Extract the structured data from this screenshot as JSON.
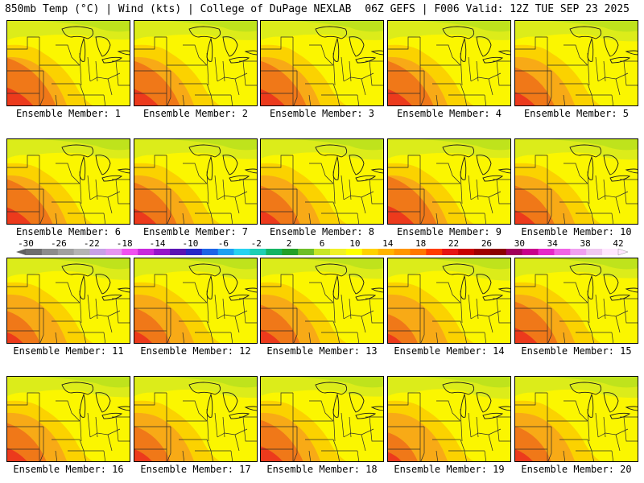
{
  "header": {
    "left": "850mb Temp (°C) | Wind (kts) | College of DuPage NEXLAB",
    "right": "06Z GEFS | F006 Valid: 12Z TUE SEP 23 2025"
  },
  "members": [
    {
      "label": "Ensemble Member: 1",
      "hot": 0.9
    },
    {
      "label": "Ensemble Member: 2",
      "hot": 0.8
    },
    {
      "label": "Ensemble Member: 3",
      "hot": 0.8
    },
    {
      "label": "Ensemble Member: 4",
      "hot": 0.8
    },
    {
      "label": "Ensemble Member: 5",
      "hot": 0.6
    },
    {
      "label": "Ensemble Member: 6",
      "hot": 0.8
    },
    {
      "label": "Ensemble Member: 7",
      "hot": 0.7
    },
    {
      "label": "Ensemble Member: 8",
      "hot": 0.6
    },
    {
      "label": "Ensemble Member: 9",
      "hot": 0.9
    },
    {
      "label": "Ensemble Member: 10",
      "hot": 0.6
    },
    {
      "label": "Ensemble Member: 11",
      "hot": 0.4
    },
    {
      "label": "Ensemble Member: 12",
      "hot": 0.5
    },
    {
      "label": "Ensemble Member: 13",
      "hot": 0.6
    },
    {
      "label": "Ensemble Member: 14",
      "hot": 0.3
    },
    {
      "label": "Ensemble Member: 15",
      "hot": 0.7
    },
    {
      "label": "Ensemble Member: 16",
      "hot": 0.6
    },
    {
      "label": "Ensemble Member: 17",
      "hot": 0.5
    },
    {
      "label": "Ensemble Member: 18",
      "hot": 0.7
    },
    {
      "label": "Ensemble Member: 19",
      "hot": 0.3
    },
    {
      "label": "Ensemble Member: 20",
      "hot": 0.5
    }
  ],
  "colorbar": {
    "ticks": [
      "-30",
      "-26",
      "-22",
      "-18",
      "-14",
      "-10",
      "-6",
      "-2",
      "2",
      "6",
      "10",
      "14",
      "18",
      "22",
      "26",
      "30",
      "34",
      "38",
      "42"
    ],
    "colors": [
      "#6e6e6e",
      "#8c8c8c",
      "#a0a0a0",
      "#b4b4b4",
      "#c8a0e6",
      "#e696f0",
      "#f050f0",
      "#c828dc",
      "#9614c8",
      "#5a14b4",
      "#2828c8",
      "#1e64e6",
      "#1ea0f0",
      "#28d2f0",
      "#1ecfb4",
      "#14b464",
      "#23a028",
      "#6ebe28",
      "#c8e628",
      "#f0f028",
      "#ffff00",
      "#ffd200",
      "#ffb400",
      "#ff9600",
      "#ff7800",
      "#ff3c00",
      "#e61414",
      "#c80000",
      "#a00000",
      "#8c0000",
      "#a0005a",
      "#c8008c",
      "#e628c8",
      "#f064e6",
      "#f0a0f0",
      "#f0c8f0",
      "#ffe6ff"
    ]
  },
  "colors": {
    "cold": "#bfe31c",
    "cool": "#dcec1a",
    "mild": "#fbf600",
    "warm": "#fbd200",
    "hot": "#f8aa16",
    "hotter": "#f07818",
    "hottest": "#ec3a1c"
  }
}
